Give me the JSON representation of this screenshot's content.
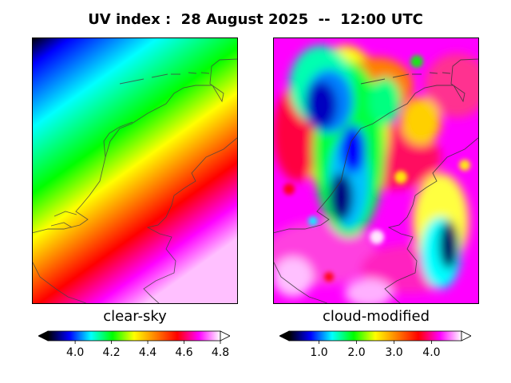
{
  "title": "UV index :  28 August 2025  --  12:00 UTC",
  "panels": [
    {
      "caption": "clear-sky",
      "colorbar": {
        "min": 3.85,
        "max": 4.8,
        "ticks": [
          4.0,
          4.2,
          4.4,
          4.6,
          4.8
        ],
        "tick_labels": [
          "4.0",
          "4.2",
          "4.4",
          "4.6",
          "4.8"
        ]
      }
    },
    {
      "caption": "cloud-modified",
      "colorbar": {
        "min": 0.2,
        "max": 4.8,
        "ticks": [
          1.0,
          2.0,
          3.0,
          4.0
        ],
        "tick_labels": [
          "1.0",
          "2.0",
          "3.0",
          "4.0"
        ]
      }
    }
  ],
  "colormap": [
    "#000000",
    "#0000ff",
    "#00ffff",
    "#00ff00",
    "#ffff00",
    "#ff8000",
    "#ff0000",
    "#ff00ff",
    "#ffffff"
  ],
  "chart_data": [
    {
      "type": "heatmap",
      "title": "clear-sky",
      "variable": "UV index",
      "colorbar_range": [
        3.85,
        4.8
      ],
      "ticks": [
        4.0,
        4.2,
        4.4,
        4.6,
        4.8
      ],
      "description_values": {
        "north-west": 3.9,
        "north-east": 4.15,
        "center": 4.35,
        "south": 4.65,
        "south-east": 4.8
      }
    },
    {
      "type": "heatmap",
      "title": "cloud-modified",
      "variable": "UV index",
      "colorbar_range": [
        0.2,
        4.8
      ],
      "ticks": [
        1.0,
        2.0,
        3.0,
        4.0
      ],
      "description_values": {
        "lowest": 0.3,
        "highest": 4.8
      }
    }
  ]
}
